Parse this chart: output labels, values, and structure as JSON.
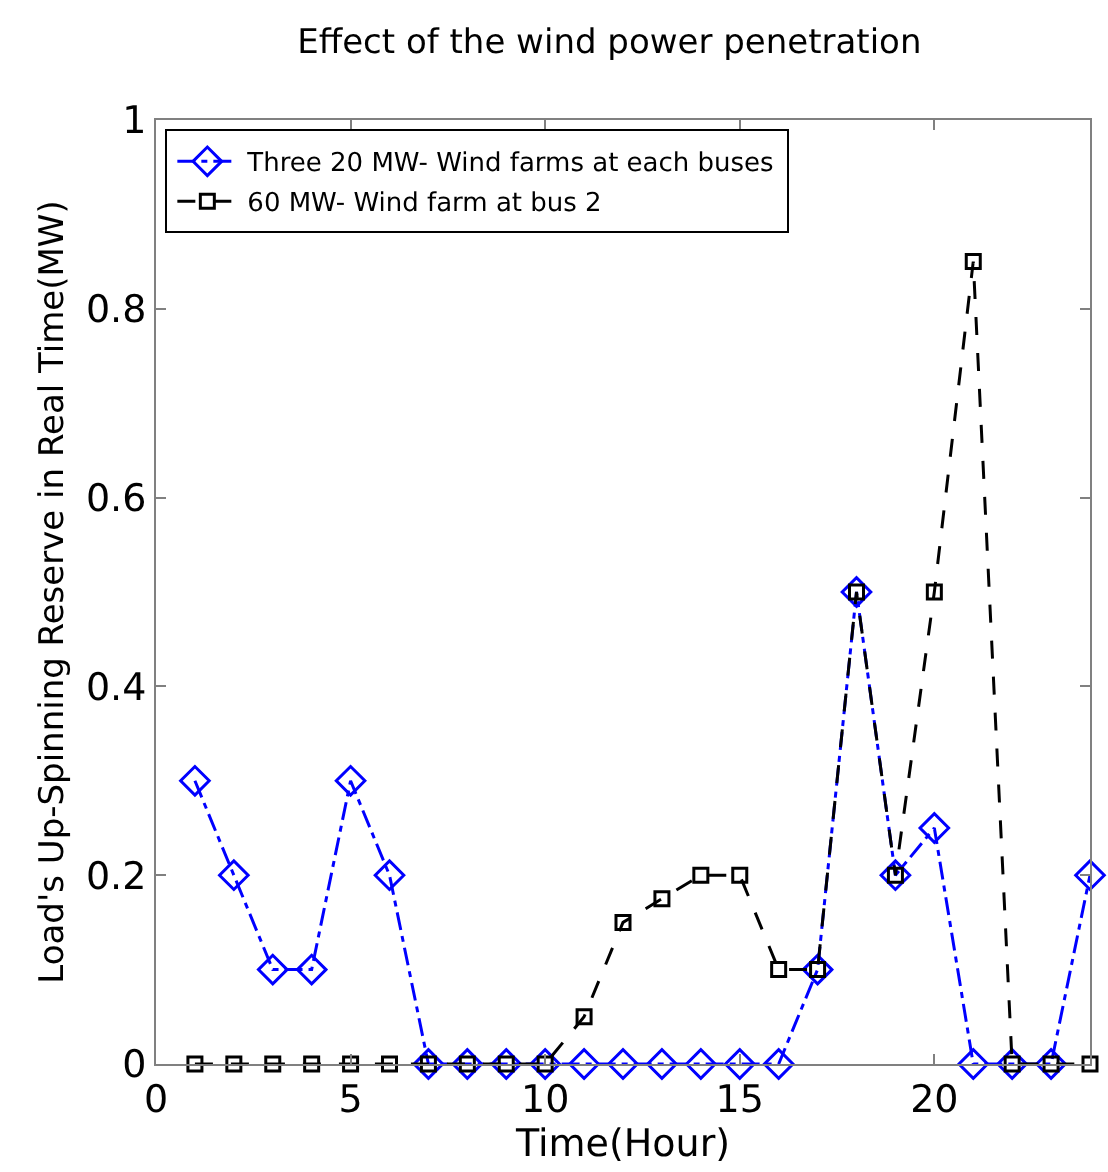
{
  "chart_data": {
    "type": "line",
    "title": "Effect of the wind power penetration",
    "xlabel": "Time(Hour)",
    "ylabel": "Load's Up-Spinning Reserve in Real Time(MW)",
    "x": [
      1,
      2,
      3,
      4,
      5,
      6,
      7,
      8,
      9,
      10,
      11,
      12,
      13,
      14,
      15,
      16,
      17,
      18,
      19,
      20,
      21,
      22,
      23,
      24
    ],
    "series": [
      {
        "name": "Three 20 MW- Wind farms at each buses",
        "color": "#0000ff",
        "marker": "diamond",
        "line_style": "dashdot",
        "values": [
          0.3,
          0.2,
          0.1,
          0.1,
          0.3,
          0.2,
          0,
          0,
          0,
          0,
          0,
          0,
          0,
          0,
          0,
          0,
          0.1,
          0.5,
          0.2,
          0.25,
          0,
          0,
          0,
          0.2
        ]
      },
      {
        "name": "60 MW- Wind farm at bus 2",
        "color": "#000000",
        "marker": "square",
        "line_style": "dashed",
        "values": [
          0,
          0,
          0,
          0,
          0,
          0,
          0,
          0,
          0,
          0,
          0.05,
          0.15,
          0.175,
          0.2,
          0.2,
          0.1,
          0.1,
          0.5,
          0.2,
          0.5,
          0.85,
          0,
          0,
          0
        ]
      }
    ],
    "xlim": [
      0,
      24
    ],
    "xticks": [
      0,
      5,
      10,
      15,
      20
    ],
    "ylim": [
      0,
      1
    ],
    "yticks": [
      0,
      0.2,
      0.4,
      0.6,
      0.8,
      1
    ],
    "legend": "top left"
  }
}
